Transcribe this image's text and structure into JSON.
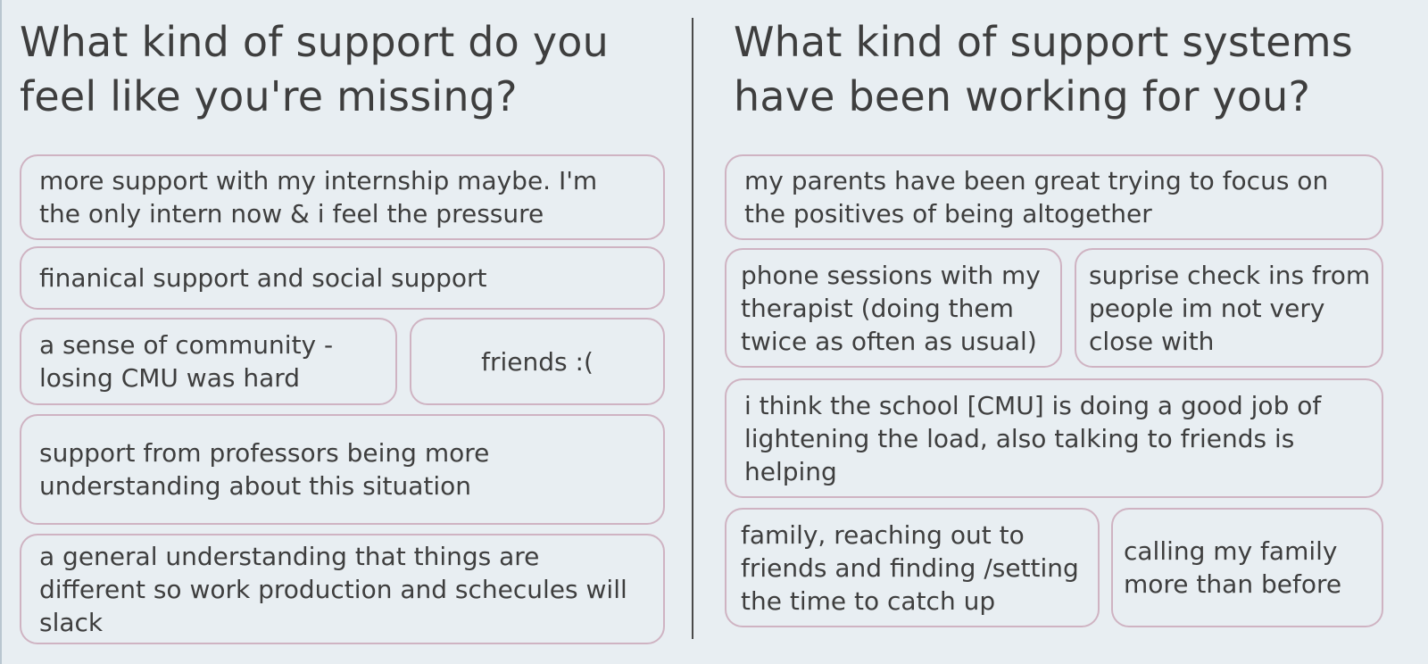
{
  "left_panel": {
    "heading": "What kind of support do you feel like you're missing?",
    "cards": [
      "more support with my internship maybe. I'm the only intern now & i feel the pressure",
      "finanical support and social support",
      "a sense of community - losing CMU was hard",
      "friends :(",
      "support from professors being more understanding about this situation",
      "a general understanding that things are different so work production and schecules will slack"
    ]
  },
  "right_panel": {
    "heading": "What kind of support systems have been working for you?",
    "cards": [
      "my parents have been great trying to focus on the positives of being altogether",
      "phone sessions with my therapist (doing them twice as often as usual)",
      "suprise check ins from people im not very close with",
      "i think the school [CMU] is doing a good job of lightening the load, also talking to friends is helping",
      "family, reaching out to friends and finding /setting the time to catch up",
      "calling my family more than before"
    ]
  },
  "colors": {
    "background": "#e8eef2",
    "card_border": "#cfb3c2",
    "text": "#3e3e3e",
    "divider": "#4a4a4a"
  }
}
